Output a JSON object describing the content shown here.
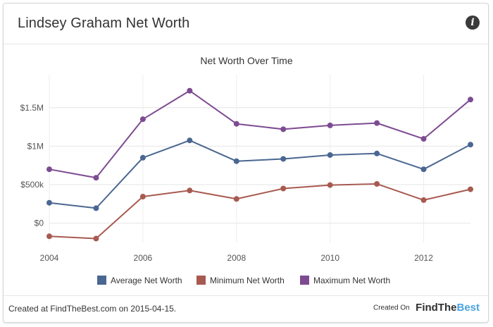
{
  "header": {
    "title": "Lindsey Graham Net Worth",
    "info_icon": "info-icon"
  },
  "footer": {
    "created_text": "Created at FindTheBest.com on 2015-04-15.",
    "created_on_label": "Created On",
    "logo_part1": "FindThe",
    "logo_part2": "Best"
  },
  "chart_data": {
    "type": "line",
    "title": "Net Worth Over Time",
    "x": [
      2004,
      2005,
      2006,
      2007,
      2008,
      2009,
      2010,
      2011,
      2012,
      2013
    ],
    "x_ticks": [
      2004,
      2006,
      2008,
      2010,
      2012
    ],
    "y_ticks": [
      {
        "value": 0,
        "label": "$0"
      },
      {
        "value": 500000,
        "label": "$500k"
      },
      {
        "value": 1000000,
        "label": "$1M"
      },
      {
        "value": 1500000,
        "label": "$1.5M"
      }
    ],
    "ylim": [
      -250000,
      1800000
    ],
    "grid": true,
    "legend_position": "bottom",
    "series": [
      {
        "name": "Average Net Worth",
        "color": "#4a6791",
        "values": [
          265000,
          195000,
          850000,
          1075000,
          805000,
          835000,
          885000,
          905000,
          700000,
          1020000
        ]
      },
      {
        "name": "Minimum Net Worth",
        "color": "#a85a50",
        "values": [
          -170000,
          -200000,
          345000,
          425000,
          315000,
          450000,
          495000,
          510000,
          300000,
          440000
        ]
      },
      {
        "name": "Maximum Net Worth",
        "color": "#7d4b92",
        "values": [
          700000,
          590000,
          1350000,
          1720000,
          1290000,
          1220000,
          1270000,
          1300000,
          1095000,
          1605000
        ]
      }
    ]
  }
}
